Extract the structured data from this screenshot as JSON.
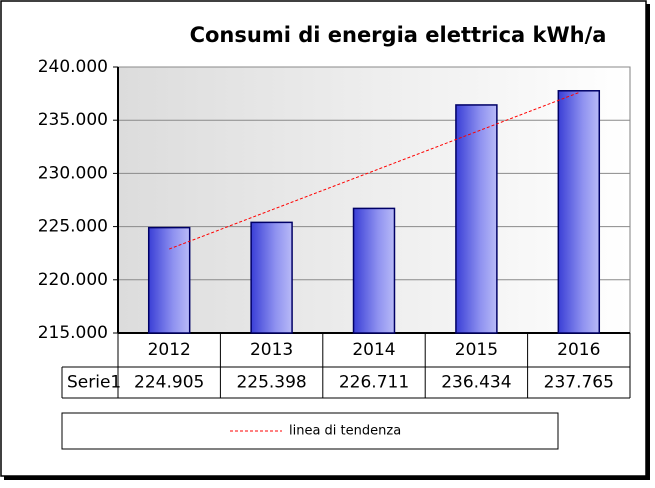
{
  "chart_data": {
    "type": "bar",
    "title": "Consumi di energia elettrica kWh/a",
    "categories": [
      "2012",
      "2013",
      "2014",
      "2015",
      "2016"
    ],
    "series": [
      {
        "name": "Serie1",
        "color": "#6a6ee8",
        "values": [
          224905,
          225398,
          226711,
          236434,
          237765
        ],
        "value_labels": [
          "224.905",
          "225.398",
          "226.711",
          "236.434",
          "237.765"
        ]
      }
    ],
    "ylim": [
      215000,
      240000
    ],
    "yticks": [
      {
        "value": 215000,
        "label": "215.000"
      },
      {
        "value": 220000,
        "label": "220.000"
      },
      {
        "value": 225000,
        "label": "225.000"
      },
      {
        "value": 230000,
        "label": "230.000"
      },
      {
        "value": 235000,
        "label": "235.000"
      },
      {
        "value": 240000,
        "label": "240.000"
      }
    ],
    "grid": true,
    "trendline": {
      "name": "linea di tendenza",
      "color": "#ff0000"
    }
  }
}
